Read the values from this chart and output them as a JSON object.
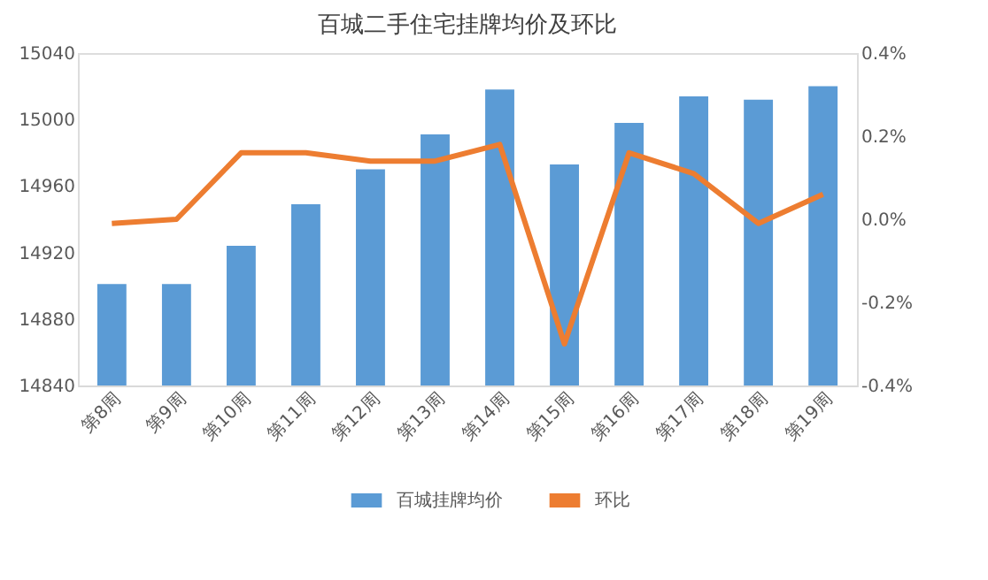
{
  "chart_data": {
    "type": "bar",
    "title": "百城二手住宅挂牌均价及环比",
    "categories": [
      "第8周",
      "第9周",
      "第10周",
      "第11周",
      "第12周",
      "第13周",
      "第14周",
      "第15周",
      "第16周",
      "第17周",
      "第18周",
      "第19周"
    ],
    "series": [
      {
        "name": "百城挂牌均价",
        "color": "#5b9bd5",
        "values": [
          14901,
          14901,
          14924,
          14949,
          14970,
          14991,
          15018,
          14973,
          14998,
          15014,
          15012,
          15020
        ]
      },
      {
        "name": "环比",
        "type": "line",
        "axis": "y2",
        "color": "#ed7d31",
        "values": [
          -0.01,
          0.0,
          0.16,
          0.16,
          0.14,
          0.14,
          0.18,
          -0.3,
          0.16,
          0.11,
          -0.01,
          0.06
        ]
      }
    ],
    "ylim": [
      14840,
      15040
    ],
    "yticks": [
      14840,
      14880,
      14920,
      14960,
      15000,
      15040
    ],
    "y2lim": [
      -0.4,
      0.4
    ],
    "y2ticks": [
      {
        "value": -0.4,
        "label": "-0.4%"
      },
      {
        "value": -0.2,
        "label": "-0.2%"
      },
      {
        "value": 0.0,
        "label": "0.0%"
      },
      {
        "value": 0.2,
        "label": "0.2%"
      },
      {
        "value": 0.4,
        "label": "0.4%"
      }
    ],
    "grid": false,
    "legend": "bottom",
    "marker": "none",
    "line_style": "solid"
  }
}
